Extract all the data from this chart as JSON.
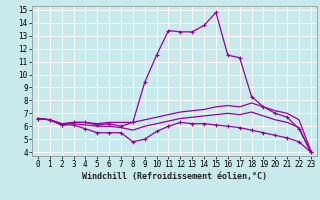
{
  "title": "",
  "xlabel": "Windchill (Refroidissement éolien,°C)",
  "ylabel": "",
  "bg_color": "#c8eaed",
  "line_color": "#990099",
  "grid_color": "#ffffff",
  "xlim": [
    -0.5,
    23.5
  ],
  "ylim": [
    3.7,
    15.3
  ],
  "yticks": [
    4,
    5,
    6,
    7,
    8,
    9,
    10,
    11,
    12,
    13,
    14,
    15
  ],
  "xticks": [
    0,
    1,
    2,
    3,
    4,
    5,
    6,
    7,
    8,
    9,
    10,
    11,
    12,
    13,
    14,
    15,
    16,
    17,
    18,
    19,
    20,
    21,
    22,
    23
  ],
  "line1": [
    6.6,
    6.5,
    6.1,
    6.3,
    6.3,
    6.1,
    6.2,
    6.0,
    6.3,
    9.4,
    11.5,
    13.4,
    13.3,
    13.3,
    13.8,
    14.8,
    11.5,
    11.3,
    8.3,
    7.5,
    7.0,
    6.7,
    5.8,
    4.0
  ],
  "line2": [
    6.6,
    6.5,
    6.1,
    6.1,
    5.8,
    5.5,
    5.5,
    5.5,
    4.8,
    5.0,
    5.6,
    6.0,
    6.3,
    6.2,
    6.2,
    6.1,
    6.0,
    5.9,
    5.7,
    5.5,
    5.3,
    5.1,
    4.8,
    4.0
  ],
  "line3": [
    6.6,
    6.5,
    6.2,
    6.3,
    6.3,
    6.2,
    6.3,
    6.3,
    6.3,
    6.5,
    6.7,
    6.9,
    7.1,
    7.2,
    7.3,
    7.5,
    7.6,
    7.5,
    7.8,
    7.5,
    7.2,
    7.0,
    6.5,
    4.1
  ],
  "line4": [
    6.6,
    6.5,
    6.2,
    6.2,
    6.1,
    6.0,
    6.0,
    5.9,
    5.7,
    6.0,
    6.2,
    6.4,
    6.6,
    6.7,
    6.8,
    6.9,
    7.0,
    6.9,
    7.1,
    6.8,
    6.5,
    6.3,
    5.9,
    4.0
  ],
  "tick_fontsize": 5.5,
  "xlabel_fontsize": 6.0
}
